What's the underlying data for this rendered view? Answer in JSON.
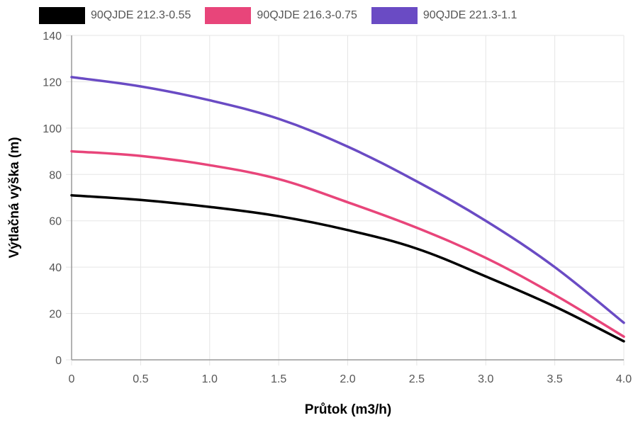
{
  "chart_data": {
    "type": "line",
    "xlabel": "Průtok (m3/h)",
    "ylabel": "Výtlačná výška (m)",
    "xlim": [
      0,
      4.0
    ],
    "ylim": [
      0,
      140
    ],
    "x_ticks": [
      "0",
      "0.5",
      "1.0",
      "1.5",
      "2.0",
      "2.5",
      "3.0",
      "3.5",
      "4.0"
    ],
    "y_ticks": [
      "0",
      "20",
      "40",
      "60",
      "80",
      "100",
      "120",
      "140"
    ],
    "grid": true,
    "legend_position": "top",
    "series": [
      {
        "name": "90QJDE 212.3-0.55",
        "color": "#000000",
        "x": [
          0,
          0.5,
          1.0,
          1.5,
          2.0,
          2.5,
          3.0,
          3.5,
          4.0
        ],
        "y": [
          71,
          69,
          66,
          62,
          56,
          48,
          36,
          23,
          8
        ]
      },
      {
        "name": "90QJDE 216.3-0.75",
        "color": "#e8457a",
        "x": [
          0,
          0.5,
          1.0,
          1.5,
          2.0,
          2.5,
          3.0,
          3.5,
          4.0
        ],
        "y": [
          90,
          88,
          84,
          78,
          68,
          57,
          44,
          28,
          10
        ]
      },
      {
        "name": "90QJDE 221.3-1.1",
        "color": "#6a4bc4",
        "x": [
          0,
          0.5,
          1.0,
          1.5,
          2.0,
          2.5,
          3.0,
          3.5,
          4.0
        ],
        "y": [
          122,
          118,
          112,
          104,
          92,
          77,
          60,
          40,
          16
        ]
      }
    ]
  }
}
